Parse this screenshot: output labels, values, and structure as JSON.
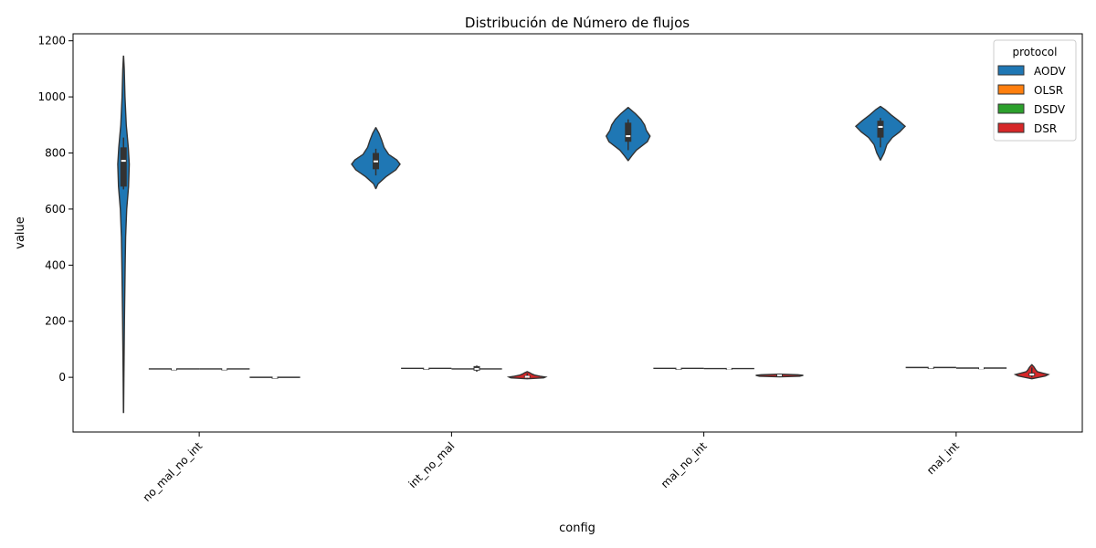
{
  "chart_data": {
    "type": "violin",
    "title": "Distribución de Número de flujos",
    "xlabel": "config",
    "ylabel": "value",
    "ylim": [
      -195,
      1225
    ],
    "yticks": [
      0,
      200,
      400,
      600,
      800,
      1000,
      1200
    ],
    "categories": [
      "no_mal_no_int",
      "int_no_mal",
      "mal_no_int",
      "mal_int"
    ],
    "legend": {
      "title": "protocol",
      "placement": "top-right",
      "entries": [
        {
          "name": "AODV",
          "color": "#1f77b4"
        },
        {
          "name": "OLSR",
          "color": "#ff7f0e"
        },
        {
          "name": "DSDV",
          "color": "#2ca02c"
        },
        {
          "name": "DSR",
          "color": "#d62728"
        }
      ]
    },
    "series": [
      {
        "name": "AODV",
        "color": "#1f77b4",
        "violins": [
          {
            "config": "no_mal_no_int",
            "min": -125,
            "max": 1145,
            "q1": 680,
            "median": 772,
            "q3": 820,
            "whisker_low": 670,
            "whisker_high": 855,
            "profile": [
              [
                -125,
                0.1
              ],
              [
                0,
                0.4
              ],
              [
                200,
                1.0
              ],
              [
                400,
                1.8
              ],
              [
                500,
                2.3
              ],
              [
                600,
                3.5
              ],
              [
                680,
                5.5
              ],
              [
                760,
                6.3
              ],
              [
                820,
                5.2
              ],
              [
                900,
                3.0
              ],
              [
                1000,
                1.6
              ],
              [
                1100,
                0.8
              ],
              [
                1145,
                0.1
              ]
            ]
          },
          {
            "config": "int_no_mal",
            "min": 673,
            "max": 890,
            "q1": 742,
            "median": 770,
            "q3": 800,
            "whisker_low": 720,
            "whisker_high": 815,
            "profile": [
              [
                673,
                0.1
              ],
              [
                690,
                2.5
              ],
              [
                715,
                11
              ],
              [
                740,
                22
              ],
              [
                760,
                26.5
              ],
              [
                775,
                23
              ],
              [
                795,
                14
              ],
              [
                820,
                9
              ],
              [
                845,
                6.5
              ],
              [
                870,
                3.5
              ],
              [
                890,
                0.1
              ]
            ]
          },
          {
            "config": "mal_no_int",
            "min": 773,
            "max": 962,
            "q1": 840,
            "median": 860,
            "q3": 908,
            "whisker_low": 810,
            "whisker_high": 920,
            "profile": [
              [
                773,
                0.1
              ],
              [
                790,
                4
              ],
              [
                810,
                9
              ],
              [
                840,
                21
              ],
              [
                860,
                24
              ],
              [
                880,
                20
              ],
              [
                900,
                18
              ],
              [
                920,
                14
              ],
              [
                940,
                8
              ],
              [
                962,
                0.1
              ]
            ]
          },
          {
            "config": "mal_int",
            "min": 775,
            "max": 966,
            "q1": 855,
            "median": 893,
            "q3": 915,
            "whisker_low": 820,
            "whisker_high": 925,
            "profile": [
              [
                775,
                0.1
              ],
              [
                800,
                4
              ],
              [
                830,
                7
              ],
              [
                855,
                13
              ],
              [
                875,
                21
              ],
              [
                895,
                27
              ],
              [
                915,
                20
              ],
              [
                935,
                12
              ],
              [
                955,
                5
              ],
              [
                966,
                0.1
              ]
            ]
          }
        ]
      },
      {
        "name": "OLSR",
        "color": "#ff7f0e",
        "violins": [
          {
            "config": "no_mal_no_int",
            "min": 29,
            "max": 31,
            "q1": 30,
            "median": 30,
            "q3": 30,
            "whisker_low": 30,
            "whisker_high": 30,
            "profile": []
          },
          {
            "config": "int_no_mal",
            "min": 31,
            "max": 33,
            "q1": 32,
            "median": 32,
            "q3": 32,
            "whisker_low": 32,
            "whisker_high": 32,
            "profile": []
          },
          {
            "config": "mal_no_int",
            "min": 31,
            "max": 33,
            "q1": 32,
            "median": 32,
            "q3": 32,
            "whisker_low": 32,
            "whisker_high": 32,
            "profile": []
          },
          {
            "config": "mal_int",
            "min": 34,
            "max": 36,
            "q1": 35,
            "median": 35,
            "q3": 35,
            "whisker_low": 35,
            "whisker_high": 35,
            "profile": []
          }
        ]
      },
      {
        "name": "DSDV",
        "color": "#2ca02c",
        "violins": [
          {
            "config": "no_mal_no_int",
            "min": 29,
            "max": 31,
            "q1": 30,
            "median": 30,
            "q3": 30,
            "whisker_low": 30,
            "whisker_high": 30,
            "profile": []
          },
          {
            "config": "int_no_mal",
            "min": 20,
            "max": 42,
            "q1": 24,
            "median": 30,
            "q3": 40,
            "whisker_low": 20,
            "whisker_high": 42,
            "profile": []
          },
          {
            "config": "mal_no_int",
            "min": 28,
            "max": 34,
            "q1": 29,
            "median": 31,
            "q3": 32,
            "whisker_low": 28,
            "whisker_high": 34,
            "profile": []
          },
          {
            "config": "mal_int",
            "min": 30,
            "max": 36,
            "q1": 32,
            "median": 33,
            "q3": 34,
            "whisker_low": 30,
            "whisker_high": 36,
            "profile": []
          }
        ]
      },
      {
        "name": "DSR",
        "color": "#d62728",
        "violins": [
          {
            "config": "no_mal_no_int",
            "min": -1,
            "max": 1,
            "q1": 0,
            "median": 0,
            "q3": 0,
            "whisker_low": 0,
            "whisker_high": 0,
            "profile": []
          },
          {
            "config": "int_no_mal",
            "min": -5,
            "max": 20,
            "q1": -1,
            "median": 2,
            "q3": 6,
            "whisker_low": -3,
            "whisker_high": 14,
            "profile": [
              [
                -5,
                0.1
              ],
              [
                -2,
                18
              ],
              [
                1,
                20
              ],
              [
                4,
                14
              ],
              [
                8,
                8
              ],
              [
                12,
                5
              ],
              [
                16,
                3
              ],
              [
                20,
                0.1
              ]
            ]
          },
          {
            "config": "mal_no_int",
            "min": 2,
            "max": 11,
            "q1": 5,
            "median": 7,
            "q3": 9,
            "whisker_low": 3,
            "whisker_high": 10,
            "profile": [
              [
                2,
                0.1
              ],
              [
                4,
                22
              ],
              [
                7,
                26
              ],
              [
                9,
                20
              ],
              [
                11,
                0.1
              ]
            ]
          },
          {
            "config": "mal_int",
            "min": -5,
            "max": 45,
            "q1": 5,
            "median": 10,
            "q3": 16,
            "whisker_low": 0,
            "whisker_high": 35,
            "profile": [
              [
                -5,
                0.1
              ],
              [
                0,
                8
              ],
              [
                5,
                15
              ],
              [
                10,
                18
              ],
              [
                15,
                12
              ],
              [
                20,
                6
              ],
              [
                28,
                4
              ],
              [
                36,
                2.5
              ],
              [
                45,
                0.1
              ]
            ]
          }
        ]
      }
    ]
  }
}
